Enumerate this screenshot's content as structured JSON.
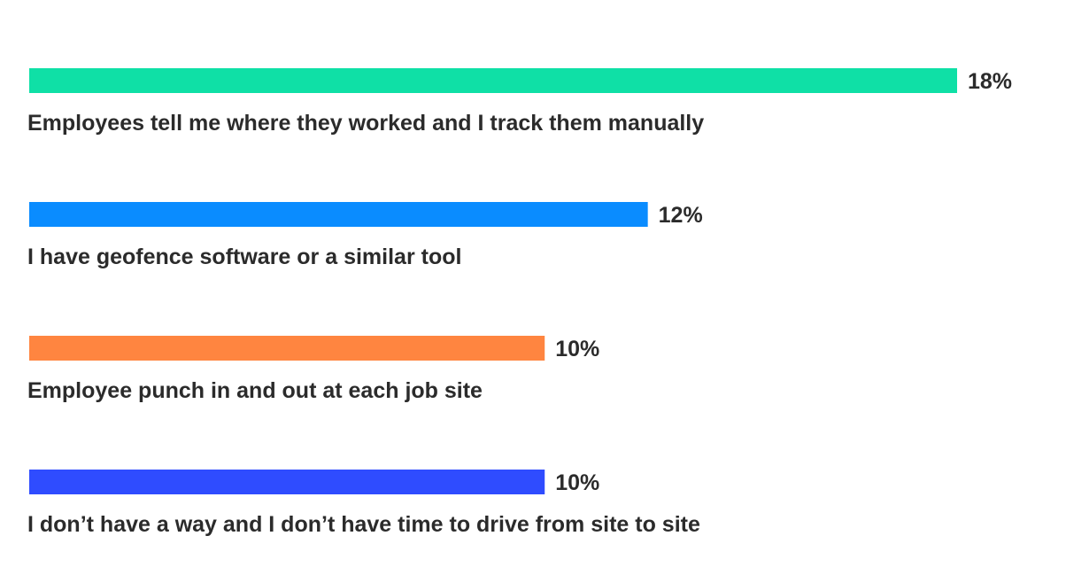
{
  "chart_data": {
    "type": "bar",
    "orientation": "horizontal",
    "categories": [
      "Employees tell me where they worked and I track them manually",
      "I have geofence software or a similar tool",
      "Employee punch in and out at each job site",
      "I don’t have a way and I don’t have time to drive from site to site"
    ],
    "values": [
      18,
      12,
      10,
      10
    ],
    "value_labels": [
      "18%",
      "12%",
      "10%",
      "10%"
    ],
    "colors": [
      "#0fe0a6",
      "#0a8cff",
      "#ff8540",
      "#2f4cff"
    ],
    "xlim": [
      0,
      18
    ],
    "unit": "%",
    "grid": false,
    "legend": "none"
  }
}
